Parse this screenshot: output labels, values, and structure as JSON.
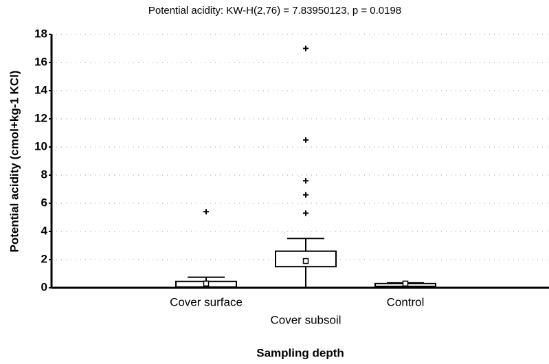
{
  "chart_data": {
    "type": "box",
    "title": "Potential acidity: KW-H(2,76) = 7.83950123, p = 0.0198",
    "xlabel": "Sampling depth",
    "ylabel": "Potential acidity (cmol+kg-1 KCl)",
    "categories": [
      "Cover surface",
      "Cover subsoil",
      "Control"
    ],
    "boxes": [
      {
        "min": 0,
        "q1": 0.05,
        "median": 0.3,
        "q3": 0.45,
        "max": 0.75,
        "outliers": [
          5.4
        ]
      },
      {
        "min": 0,
        "q1": 1.5,
        "median": 1.9,
        "q3": 2.6,
        "max": 3.5,
        "outliers": [
          17,
          10.5,
          7.6,
          6.6,
          5.3
        ]
      },
      {
        "min": 0,
        "q1": 0.1,
        "median": 0.3,
        "q3": 0.3,
        "max": 0.35,
        "outliers": []
      }
    ],
    "color": "#000000",
    "ylim": [
      0,
      18
    ],
    "yticks": [
      0,
      2,
      4,
      6,
      8,
      10,
      12,
      14,
      16,
      18
    ],
    "grid": true
  }
}
